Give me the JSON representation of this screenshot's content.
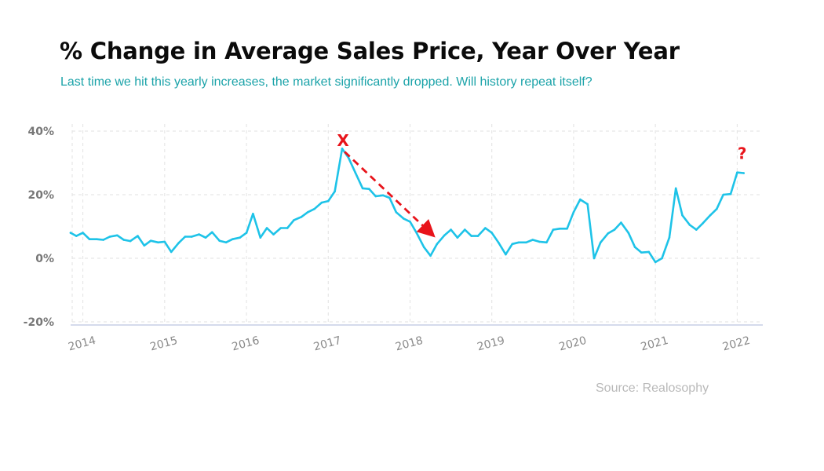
{
  "header": {
    "title": "% Change in Average Sales Price, Year Over Year",
    "subtitle": "Last time we hit this yearly increases, the market significantly dropped. Will history repeat itself?"
  },
  "footer": {
    "source": "Source: Realosophy"
  },
  "colors": {
    "line": "#1ec3e8",
    "annotation": "#e8141b",
    "grid": "#e2e2e2",
    "title": "#0b0b0b",
    "subtitle": "#1ba3a9",
    "source": "#b9b9b9"
  },
  "chart_data": {
    "type": "line",
    "title": "% Change in Average Sales Price, Year Over Year",
    "xlabel": "",
    "ylabel": "",
    "ylim": [
      -20,
      40
    ],
    "yticks": [
      40,
      20,
      0,
      -20
    ],
    "ytick_labels": [
      "40%",
      "20%",
      "0%",
      "-20%"
    ],
    "xlim": [
      2013.85,
      2022.15
    ],
    "xticks": [
      2014,
      2015,
      2016,
      2017,
      2018,
      2019,
      2020,
      2021,
      2022
    ],
    "xtick_labels": [
      "2014",
      "2015",
      "2016",
      "2017",
      "2018",
      "2019",
      "2020",
      "2021",
      "2022"
    ],
    "grid": true,
    "series": [
      {
        "values": [
          [
            2013.85,
            8
          ],
          [
            2013.92,
            7
          ],
          [
            2014.0,
            8
          ],
          [
            2014.08,
            6
          ],
          [
            2014.17,
            6
          ],
          [
            2014.25,
            5.8
          ],
          [
            2014.33,
            6.8
          ],
          [
            2014.42,
            7.2
          ],
          [
            2014.5,
            5.8
          ],
          [
            2014.58,
            5.4
          ],
          [
            2014.67,
            7
          ],
          [
            2014.75,
            4
          ],
          [
            2014.83,
            5.5
          ],
          [
            2014.92,
            5
          ],
          [
            2015.0,
            5.2
          ],
          [
            2015.08,
            2
          ],
          [
            2015.17,
            4.8
          ],
          [
            2015.25,
            6.8
          ],
          [
            2015.33,
            6.8
          ],
          [
            2015.42,
            7.5
          ],
          [
            2015.5,
            6.5
          ],
          [
            2015.58,
            8.2
          ],
          [
            2015.67,
            5.5
          ],
          [
            2015.75,
            5
          ],
          [
            2015.83,
            6
          ],
          [
            2015.92,
            6.5
          ],
          [
            2016.0,
            8
          ],
          [
            2016.08,
            14
          ],
          [
            2016.17,
            6.5
          ],
          [
            2016.25,
            9.5
          ],
          [
            2016.33,
            7.5
          ],
          [
            2016.42,
            9.5
          ],
          [
            2016.5,
            9.5
          ],
          [
            2016.58,
            12
          ],
          [
            2016.67,
            13
          ],
          [
            2016.75,
            14.5
          ],
          [
            2016.83,
            15.5
          ],
          [
            2016.92,
            17.5
          ],
          [
            2017.0,
            18
          ],
          [
            2017.08,
            21
          ],
          [
            2017.17,
            34.5
          ],
          [
            2017.25,
            31.5
          ],
          [
            2017.33,
            27
          ],
          [
            2017.42,
            22
          ],
          [
            2017.5,
            21.8
          ],
          [
            2017.58,
            19.5
          ],
          [
            2017.67,
            19.8
          ],
          [
            2017.75,
            19
          ],
          [
            2017.83,
            14.5
          ],
          [
            2017.92,
            12.5
          ],
          [
            2018.0,
            11.5
          ],
          [
            2018.08,
            8
          ],
          [
            2018.17,
            3.5
          ],
          [
            2018.25,
            0.8
          ],
          [
            2018.33,
            4.5
          ],
          [
            2018.42,
            7.2
          ],
          [
            2018.5,
            9
          ],
          [
            2018.58,
            6.5
          ],
          [
            2018.67,
            9
          ],
          [
            2018.75,
            7
          ],
          [
            2018.83,
            7
          ],
          [
            2018.92,
            9.5
          ],
          [
            2019.0,
            8
          ],
          [
            2019.08,
            5
          ],
          [
            2019.17,
            1.2
          ],
          [
            2019.25,
            4.5
          ],
          [
            2019.33,
            5
          ],
          [
            2019.42,
            5
          ],
          [
            2019.5,
            5.8
          ],
          [
            2019.58,
            5.2
          ],
          [
            2019.67,
            5
          ],
          [
            2019.75,
            9
          ],
          [
            2019.83,
            9.3
          ],
          [
            2019.92,
            9.3
          ],
          [
            2020.0,
            14.5
          ],
          [
            2020.08,
            18.5
          ],
          [
            2020.17,
            17
          ],
          [
            2020.25,
            0
          ],
          [
            2020.33,
            5
          ],
          [
            2020.42,
            7.8
          ],
          [
            2020.5,
            9
          ],
          [
            2020.58,
            11.2
          ],
          [
            2020.67,
            8
          ],
          [
            2020.75,
            3.5
          ],
          [
            2020.83,
            1.8
          ],
          [
            2020.92,
            2
          ],
          [
            2021.0,
            -1.2
          ],
          [
            2021.08,
            0
          ],
          [
            2021.17,
            6.5
          ],
          [
            2021.25,
            22
          ],
          [
            2021.33,
            13.5
          ],
          [
            2021.42,
            10.5
          ],
          [
            2021.5,
            9
          ],
          [
            2021.58,
            11
          ],
          [
            2021.67,
            13.5
          ],
          [
            2021.75,
            15.5
          ],
          [
            2021.83,
            20
          ],
          [
            2021.92,
            20.2
          ],
          [
            2022.0,
            27
          ],
          [
            2022.08,
            26.8
          ]
        ]
      }
    ],
    "annotations": [
      {
        "label": "X",
        "x": 2017.18,
        "y": 37
      },
      {
        "label": "?",
        "x": 2022.06,
        "y": 33
      }
    ],
    "arrow": {
      "from": [
        2017.2,
        33.5
      ],
      "to": [
        2018.27,
        7.5
      ]
    }
  }
}
